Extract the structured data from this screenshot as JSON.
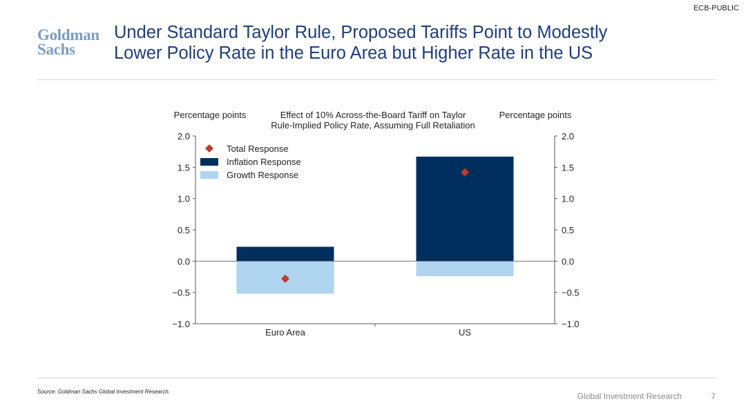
{
  "header": {
    "classification": "ECB-PUBLIC",
    "logo_line1": "Goldman",
    "logo_line2": "Sachs",
    "title_line1": "Under Standard Taylor Rule, Proposed Tariffs Point to Modestly",
    "title_line2": "Lower Policy Rate in the Euro Area but Higher Rate in the US"
  },
  "footer": {
    "source": "Source: Goldman Sachs Global Investment Research.",
    "brand": "Global Investment Research",
    "page_number": "7"
  },
  "colors": {
    "inflation": "#002f5f",
    "growth": "#afd4f0",
    "total": "#c0392b",
    "title": "#1f3d7a"
  },
  "chart_data": {
    "type": "bar",
    "title_line1": "Effect of 10% Across-the-Board Tariff on Taylor",
    "title_line2": "Rule-Implied Policy Rate, Assuming Full Retaliation",
    "ylabel_left": "Percentage points",
    "ylabel_right": "Percentage points",
    "ylim": [
      -1.0,
      2.0
    ],
    "yticks": [
      -1.0,
      -0.5,
      0.0,
      0.5,
      1.0,
      1.5,
      2.0
    ],
    "ytick_labels": [
      "−1.0",
      "−0.5",
      "0.0",
      "0.5",
      "1.0",
      "1.5",
      "2.0"
    ],
    "categories": [
      "Euro Area",
      "US"
    ],
    "stacked": true,
    "legend_position": "top-left",
    "series": [
      {
        "name": "Total Response",
        "kind": "marker",
        "values": [
          -0.28,
          1.42
        ]
      },
      {
        "name": "Inflation Response",
        "kind": "bar",
        "values": [
          0.23,
          1.67
        ]
      },
      {
        "name": "Growth Response",
        "kind": "bar",
        "values": [
          -0.52,
          -0.24
        ]
      }
    ]
  }
}
